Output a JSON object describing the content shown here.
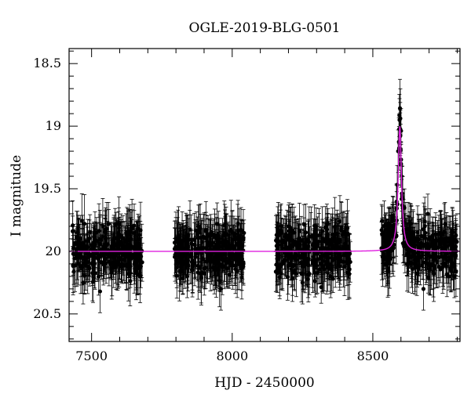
{
  "chart_data": {
    "type": "scatter",
    "title": "OGLE-2019-BLG-0501",
    "xlabel": "HJD - 2450000",
    "ylabel": "I magnitude",
    "xlim": [
      7420,
      8810
    ],
    "ylim": [
      20.72,
      18.38
    ],
    "y_inverted": true,
    "xticks": [
      7500,
      8000,
      8500
    ],
    "xtick_labels": [
      "7500",
      "8000",
      "8500"
    ],
    "yticks": [
      18.5,
      19,
      19.5,
      20,
      20.5
    ],
    "ytick_labels": [
      "18.5",
      "19",
      "19.5",
      "20",
      "20.5"
    ],
    "grid": false,
    "legend": "none",
    "colors": {
      "points": "#000000",
      "model": "#e020e0"
    },
    "series": [
      {
        "kind": "observations_with_errorbars",
        "baseline_mag": 20.0,
        "typical_error": 0.17,
        "seasons": [
          {
            "x_range": [
              7432,
              7680
            ],
            "sampled_points": [
              {
                "x": 7435,
                "y": 20.02
              },
              {
                "x": 7450,
                "y": 19.85
              },
              {
                "x": 7470,
                "y": 20.25
              },
              {
                "x": 7500,
                "y": 19.95
              },
              {
                "x": 7530,
                "y": 20.32
              },
              {
                "x": 7560,
                "y": 19.78
              },
              {
                "x": 7600,
                "y": 20.05
              },
              {
                "x": 7640,
                "y": 19.9
              },
              {
                "x": 7675,
                "y": 20.12
              }
            ]
          },
          {
            "x_range": [
              7795,
              8045
            ],
            "sampled_points": [
              {
                "x": 7800,
                "y": 19.9
              },
              {
                "x": 7840,
                "y": 20.2
              },
              {
                "x": 7880,
                "y": 19.8
              },
              {
                "x": 7920,
                "y": 20.05
              },
              {
                "x": 7960,
                "y": 20.3
              },
              {
                "x": 8000,
                "y": 19.85
              },
              {
                "x": 8040,
                "y": 20.1
              }
            ]
          },
          {
            "x_range": [
              8155,
              8420
            ],
            "sampled_points": [
              {
                "x": 8160,
                "y": 20.1
              },
              {
                "x": 8200,
                "y": 19.8
              },
              {
                "x": 8250,
                "y": 20.25
              },
              {
                "x": 8300,
                "y": 19.95
              },
              {
                "x": 8350,
                "y": 20.2
              },
              {
                "x": 8400,
                "y": 19.85
              }
            ]
          },
          {
            "x_range": [
              8530,
              8800
            ],
            "sampled_points": [
              {
                "x": 8540,
                "y": 20.05
              },
              {
                "x": 8570,
                "y": 19.8
              },
              {
                "x": 8590,
                "y": 19.2
              },
              {
                "x": 8595,
                "y": 18.95
              },
              {
                "x": 8600,
                "y": 19.3
              },
              {
                "x": 8620,
                "y": 19.95
              },
              {
                "x": 8680,
                "y": 20.3
              },
              {
                "x": 8740,
                "y": 19.85
              },
              {
                "x": 8790,
                "y": 20.2
              }
            ]
          }
        ]
      },
      {
        "kind": "model_curve",
        "baseline_mag": 20.0,
        "peak_x": 8596,
        "peak_mag": 19.0,
        "width_days": 12
      }
    ]
  }
}
